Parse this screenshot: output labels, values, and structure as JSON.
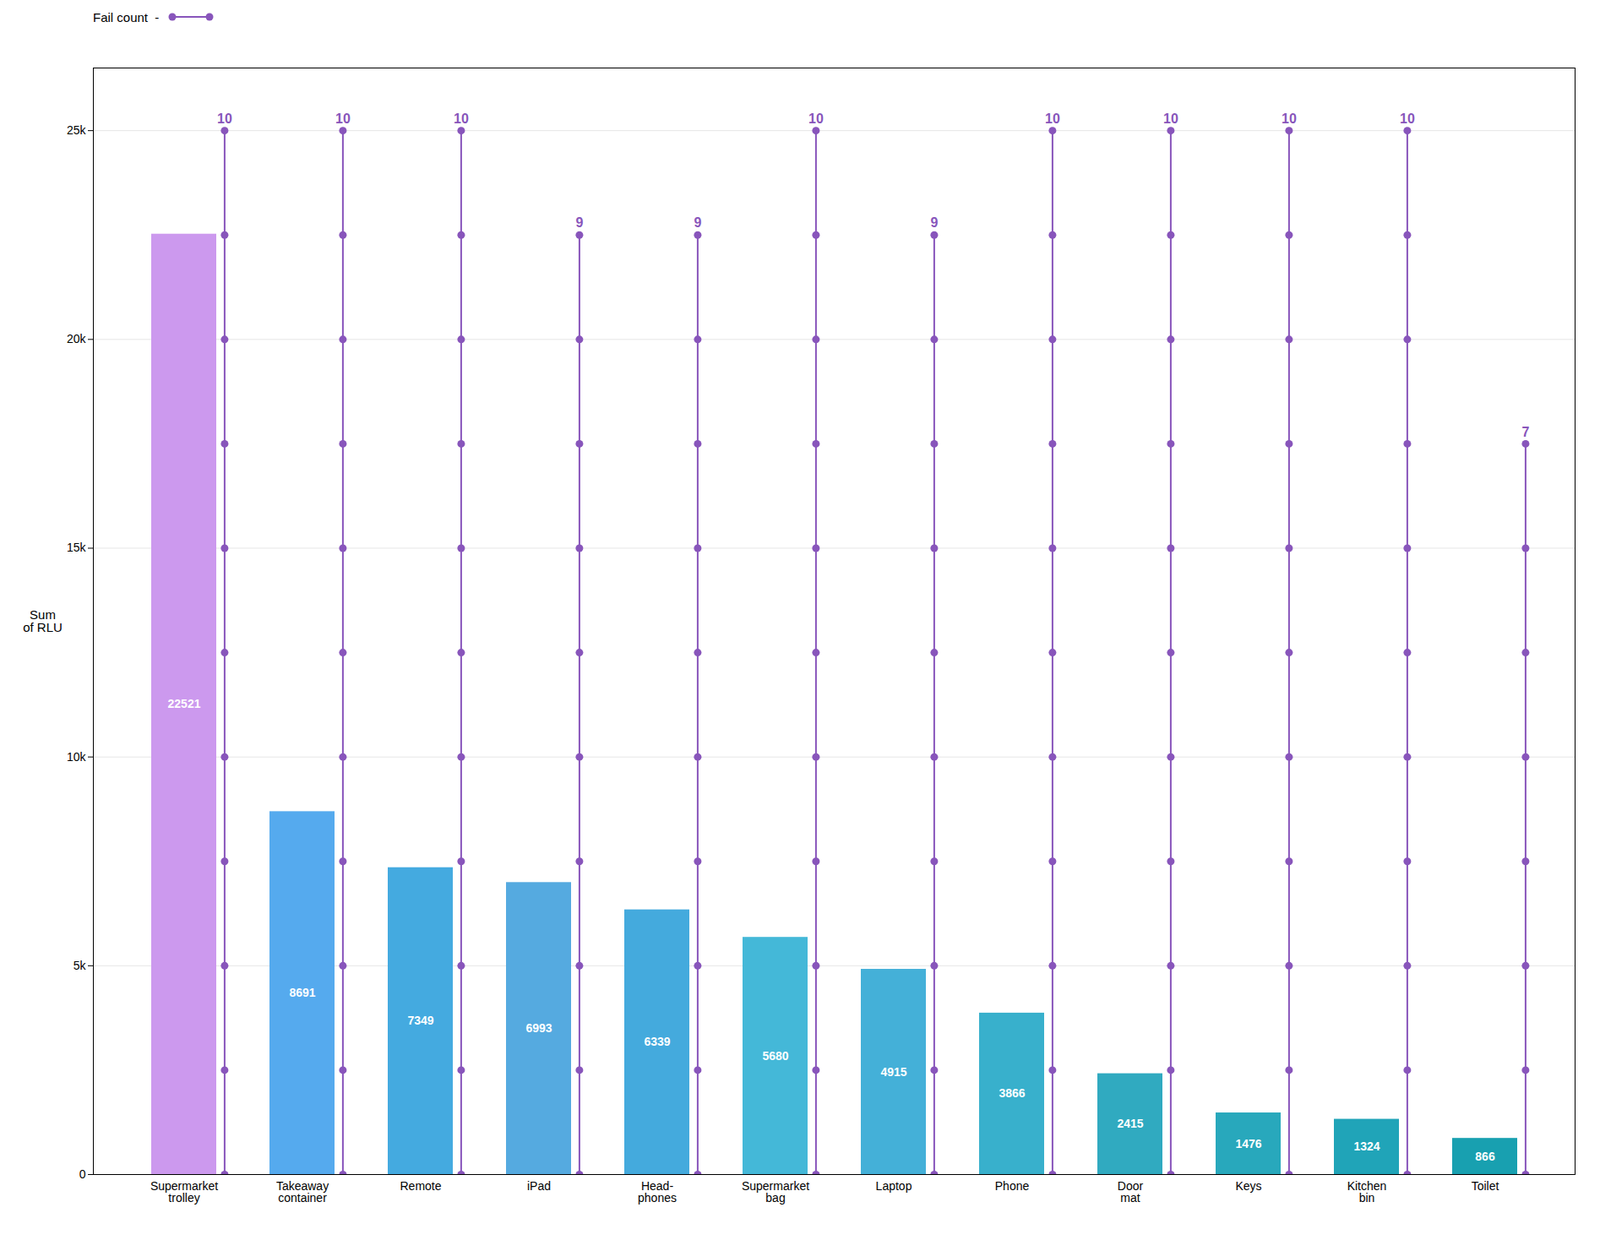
{
  "chart_data": {
    "type": "bar",
    "categories": [
      "Supermarket\ntrolley",
      "Takeaway\ncontainer",
      "Remote",
      "iPad",
      "Head-\nphones",
      "Supermarket\nbag",
      "Laptop",
      "Phone",
      "Door\nmat",
      "Keys",
      "Kitchen\nbin",
      "Toilet"
    ],
    "values": [
      22521,
      8691,
      7349,
      6993,
      6339,
      5680,
      4915,
      3866,
      2415,
      1476,
      1324,
      866
    ],
    "colors": [
      "#cc99ee",
      "#55aaee",
      "#44aae0",
      "#55aae0",
      "#44aadd",
      "#44b8d8",
      "#44b0d8",
      "#38b0cc",
      "#30aac0",
      "#28a8bc",
      "#20a4b8",
      "#18a0b0"
    ],
    "ylabel": "Sum\nof RLU",
    "ylim": [
      0,
      26500
    ],
    "yticks": [
      0,
      {
        "value": 5000,
        "label": "5k"
      },
      {
        "value": 10000,
        "label": "10k"
      },
      {
        "value": 15000,
        "label": "15k"
      },
      {
        "value": 20000,
        "label": "20k"
      },
      {
        "value": 25000,
        "label": "25k"
      }
    ],
    "grid": true,
    "data_labels": true,
    "legend": "top-left",
    "y2lim": [
      0,
      10.6
    ],
    "series": [
      {
        "name": "Fail count  -",
        "type": "line",
        "axis": "y2",
        "color": "#8855bb",
        "marker": "o",
        "values": [
          10,
          10,
          10,
          9,
          9,
          10,
          9,
          10,
          10,
          10,
          10,
          7
        ]
      }
    ]
  }
}
